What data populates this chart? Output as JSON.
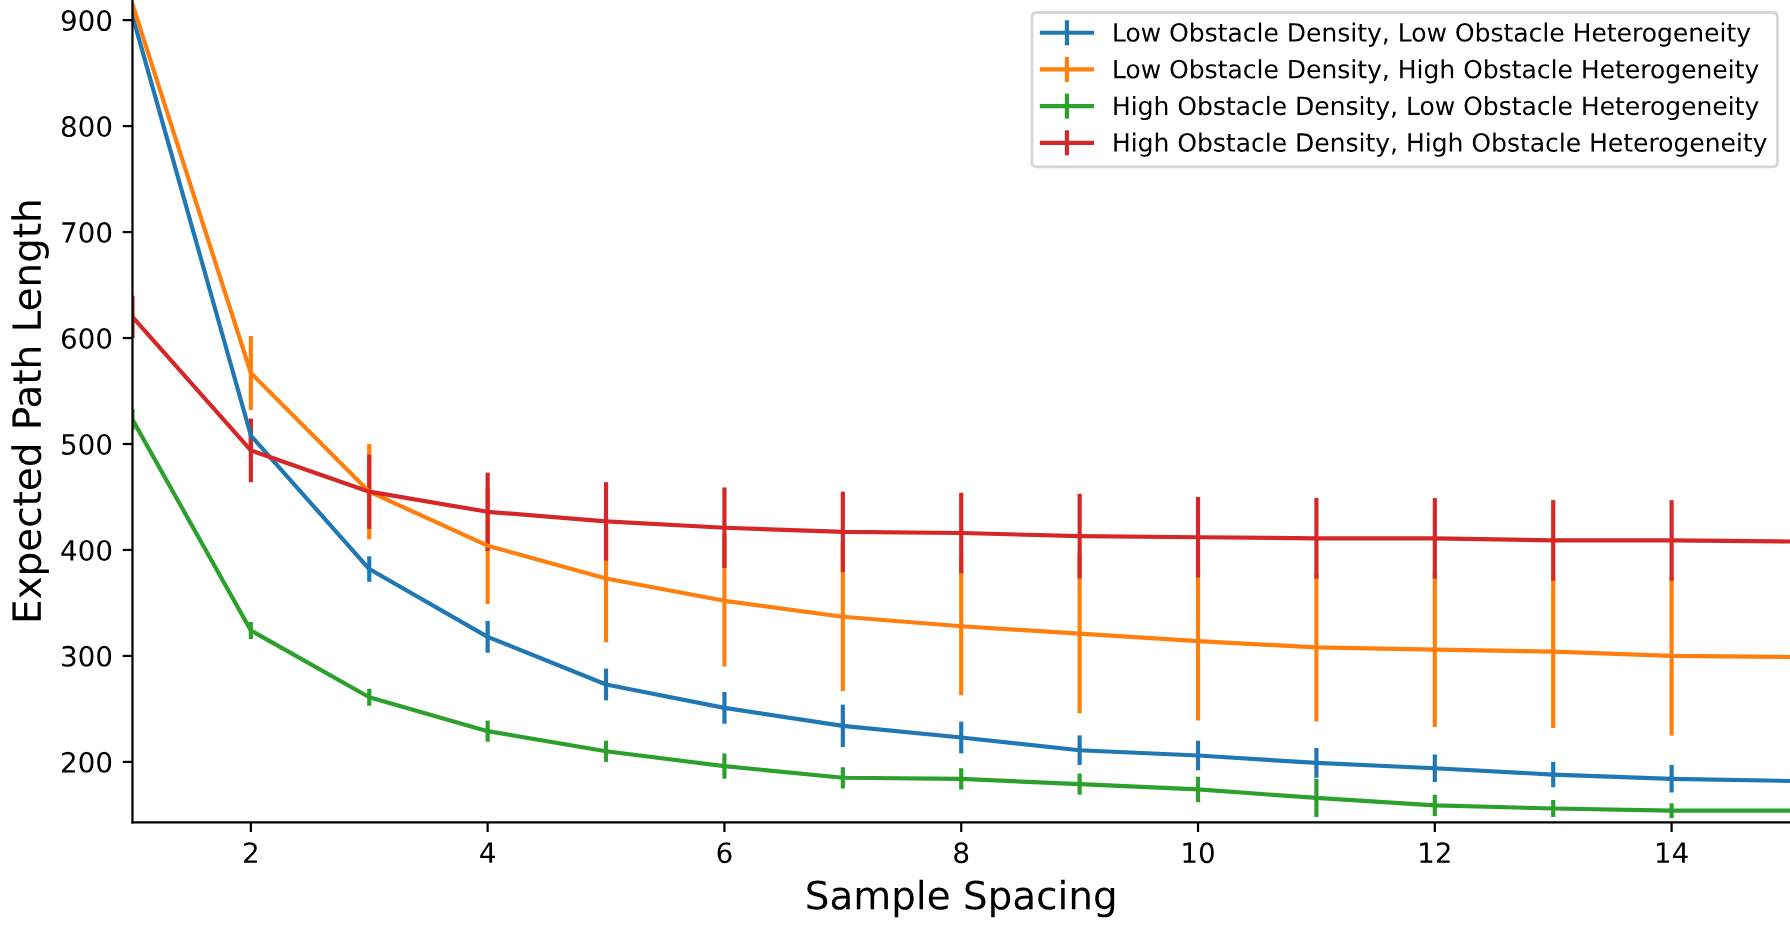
{
  "chart_data": {
    "type": "line",
    "xlabel": "Sample Spacing",
    "ylabel": "Expected Path Length",
    "x": [
      1,
      2,
      3,
      4,
      5,
      6,
      7,
      8,
      9,
      10,
      11,
      12,
      13,
      14,
      15
    ],
    "xlim": [
      1,
      15
    ],
    "xticks": [
      2,
      4,
      6,
      8,
      10,
      12,
      14
    ],
    "ylim": [
      143,
      919
    ],
    "yticks": [
      200,
      300,
      400,
      500,
      600,
      700,
      800,
      900
    ],
    "grid": false,
    "legend": "top right",
    "marker": "none",
    "line_style": "solid",
    "series": [
      {
        "name": "Low Obstacle Density, Low Obstacle Heterogeneity",
        "color": "#1f77b4",
        "values": [
          904,
          508,
          382,
          318,
          273,
          251,
          234,
          223,
          211,
          206,
          199,
          194,
          188,
          184,
          182
        ],
        "errors": [
          null,
          15,
          12,
          15,
          15,
          15,
          20,
          15,
          14,
          14,
          14,
          13,
          12,
          13,
          null
        ]
      },
      {
        "name": "Low Obstacle Density, High Obstacle Heterogeneity",
        "color": "#ff7f0e",
        "values": [
          915,
          567,
          455,
          404,
          373,
          352,
          337,
          328,
          321,
          314,
          308,
          306,
          304,
          300,
          299
        ],
        "errors": [
          null,
          35,
          45,
          55,
          60,
          62,
          70,
          65,
          75,
          75,
          70,
          73,
          72,
          75,
          null
        ]
      },
      {
        "name": "High Obstacle Density, Low Obstacle Heterogeneity",
        "color": "#2ca02c",
        "values": [
          523,
          324,
          261,
          229,
          210,
          196,
          185,
          184,
          179,
          174,
          166,
          159,
          156,
          154,
          154
        ],
        "errors": [
          10,
          8,
          8,
          10,
          10,
          12,
          10,
          10,
          10,
          12,
          18,
          10,
          8,
          7,
          null
        ]
      },
      {
        "name": "High Obstacle Density, High Obstacle Heterogeneity",
        "color": "#d62728",
        "values": [
          620,
          494,
          455,
          436,
          427,
          421,
          417,
          416,
          413,
          412,
          411,
          411,
          409,
          409,
          408
        ],
        "errors": [
          20,
          30,
          35,
          37,
          37,
          38,
          38,
          38,
          40,
          38,
          38,
          38,
          38,
          38,
          null
        ]
      }
    ]
  }
}
